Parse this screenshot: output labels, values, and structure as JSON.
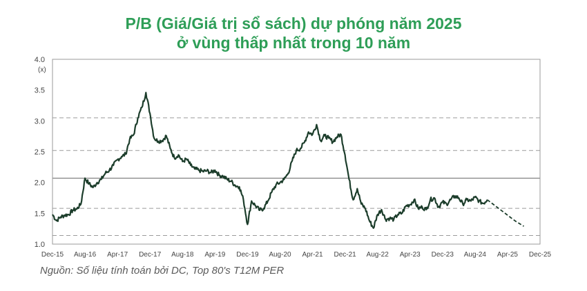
{
  "chart_data": {
    "type": "line",
    "title": "P/B (Giá/Giá trị sổ sách) dự phóng năm 2025",
    "subtitle": "ở vùng thấp nhất trong 10 năm",
    "unit_label": "(x)",
    "ylim": [
      1.0,
      4.0
    ],
    "y_ticks": [
      "1.0",
      "1.5",
      "2.0",
      "2.5",
      "3.0",
      "3.5",
      "4.0"
    ],
    "x_ticks": [
      "Dec-15",
      "Aug-16",
      "Apr-17",
      "Dec-17",
      "Aug-18",
      "Apr-19",
      "Dec-19",
      "Aug-20",
      "Apr-21",
      "Dec-21",
      "Aug-22",
      "Apr-23",
      "Dec-23",
      "Aug-24",
      "Apr-25",
      "Dec-25"
    ],
    "grid": false,
    "reference_lines": [
      {
        "value": 3.05,
        "style": "dashed"
      },
      {
        "value": 2.52,
        "style": "dashed"
      },
      {
        "value": 2.07,
        "style": "solid"
      },
      {
        "value": 1.58,
        "style": "dashed"
      },
      {
        "value": 1.14,
        "style": "dashed"
      }
    ],
    "series": [
      {
        "style": "solid",
        "color": "#1c3d2b",
        "x": [
          "2015-12",
          "2016-01",
          "2016-02",
          "2016-03",
          "2016-04",
          "2016-05",
          "2016-06",
          "2016-07",
          "2016-08",
          "2016-09",
          "2016-10",
          "2016-11",
          "2016-12",
          "2017-01",
          "2017-02",
          "2017-03",
          "2017-04",
          "2017-05",
          "2017-06",
          "2017-07",
          "2017-08",
          "2017-09",
          "2017-10",
          "2017-11",
          "2017-12",
          "2018-01",
          "2018-02",
          "2018-03",
          "2018-04",
          "2018-05",
          "2018-06",
          "2018-07",
          "2018-08",
          "2018-09",
          "2018-10",
          "2018-11",
          "2018-12",
          "2019-01",
          "2019-02",
          "2019-03",
          "2019-04",
          "2019-05",
          "2019-06",
          "2019-07",
          "2019-08",
          "2019-09",
          "2019-10",
          "2019-11",
          "2019-12",
          "2020-01",
          "2020-02",
          "2020-03",
          "2020-04",
          "2020-05",
          "2020-06",
          "2020-07",
          "2020-08",
          "2020-09",
          "2020-10",
          "2020-11",
          "2020-12",
          "2021-01",
          "2021-02",
          "2021-03",
          "2021-04",
          "2021-05",
          "2021-06",
          "2021-07",
          "2021-08",
          "2021-09",
          "2021-10",
          "2021-11",
          "2021-12",
          "2022-01",
          "2022-02",
          "2022-03",
          "2022-04",
          "2022-05",
          "2022-06",
          "2022-07",
          "2022-08",
          "2022-09",
          "2022-10",
          "2022-11",
          "2022-12",
          "2023-01",
          "2023-02",
          "2023-03",
          "2023-04",
          "2023-05",
          "2023-06",
          "2023-07",
          "2023-08",
          "2023-09",
          "2023-10",
          "2023-11",
          "2023-12",
          "2024-01",
          "2024-02",
          "2024-03",
          "2024-04",
          "2024-05",
          "2024-06",
          "2024-07",
          "2024-08",
          "2024-09",
          "2024-10",
          "2024-11"
        ],
        "y": [
          1.48,
          1.38,
          1.44,
          1.47,
          1.48,
          1.55,
          1.57,
          1.65,
          2.07,
          1.98,
          1.92,
          2.0,
          2.05,
          2.15,
          2.2,
          2.28,
          2.37,
          2.42,
          2.46,
          2.7,
          2.78,
          3.05,
          3.22,
          3.46,
          3.12,
          2.72,
          2.67,
          2.68,
          2.76,
          2.55,
          2.4,
          2.45,
          2.34,
          2.38,
          2.28,
          2.22,
          2.2,
          2.18,
          2.19,
          2.16,
          2.2,
          2.12,
          2.1,
          2.05,
          2.02,
          1.95,
          1.93,
          1.72,
          1.32,
          1.7,
          1.62,
          1.55,
          1.58,
          1.7,
          1.85,
          1.96,
          2.0,
          2.05,
          2.15,
          2.35,
          2.52,
          2.55,
          2.65,
          2.82,
          2.78,
          2.94,
          2.68,
          2.76,
          2.72,
          2.66,
          2.74,
          2.78,
          2.45,
          2.05,
          1.72,
          1.9,
          1.65,
          1.58,
          1.38,
          1.26,
          1.48,
          1.56,
          1.4,
          1.42,
          1.4,
          1.48,
          1.5,
          1.62,
          1.64,
          1.72,
          1.58,
          1.6,
          1.56,
          1.72,
          1.75,
          1.6,
          1.68,
          1.65,
          1.72,
          1.78,
          1.75,
          1.65,
          1.72,
          1.7,
          1.76,
          1.7,
          1.66,
          1.72
        ]
      },
      {
        "style": "dashed",
        "color": "#1c3d2b",
        "x": [
          "2024-11",
          "2024-12",
          "2025-01",
          "2025-02",
          "2025-03",
          "2025-04",
          "2025-05",
          "2025-06",
          "2025-07",
          "2025-08"
        ],
        "y": [
          1.72,
          1.67,
          1.62,
          1.57,
          1.52,
          1.47,
          1.42,
          1.37,
          1.33,
          1.29
        ]
      }
    ]
  },
  "source_note": "Nguồn: Số liệu tính toán bởi DC, Top 80's T12M PER"
}
